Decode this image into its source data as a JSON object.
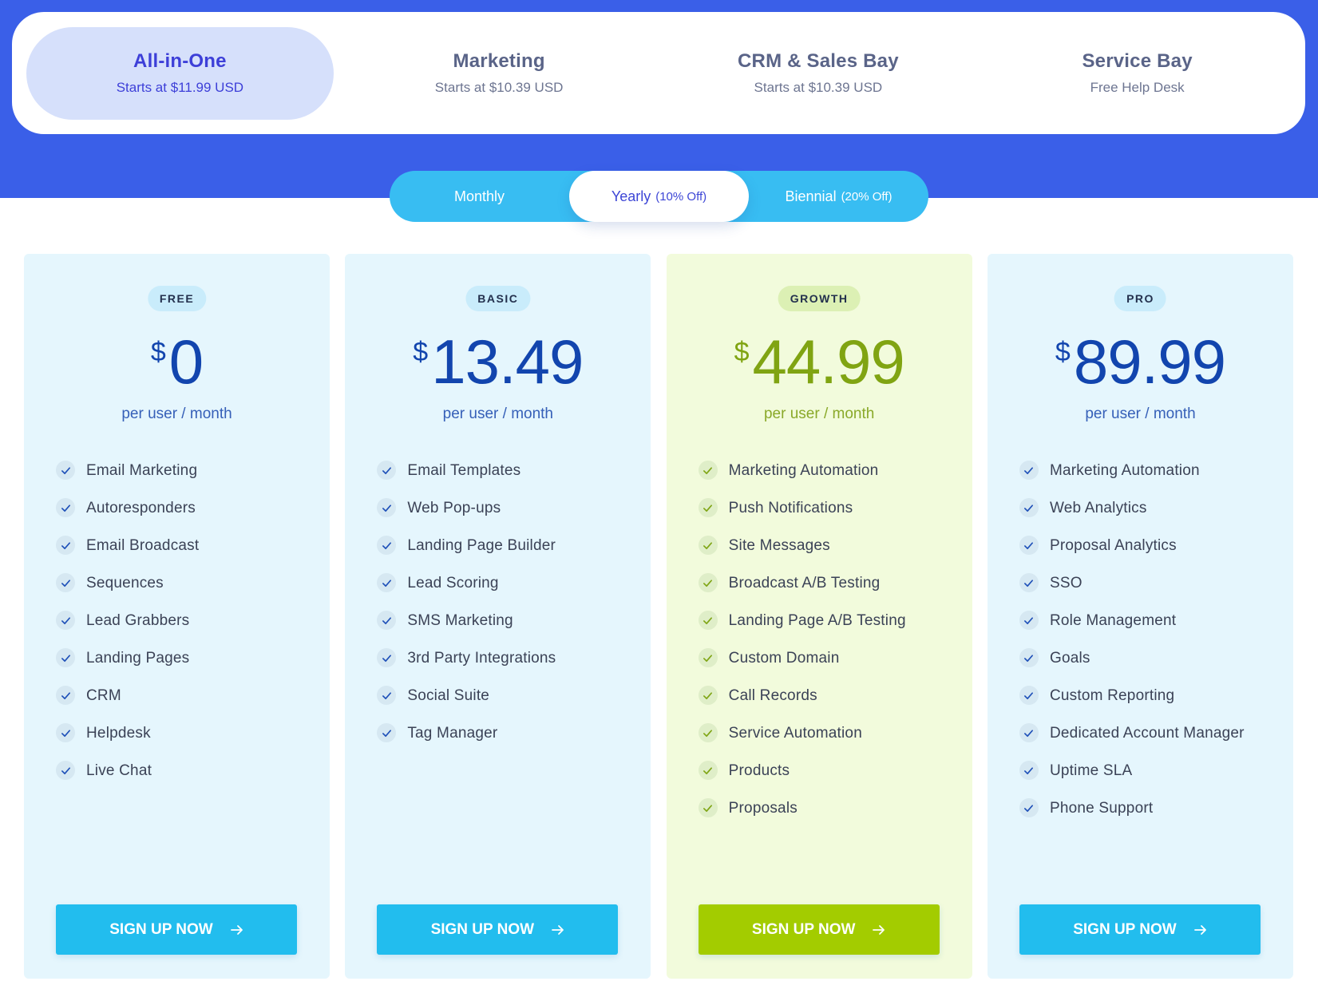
{
  "product_tabs": [
    {
      "name": "All-in-One",
      "sub": "Starts at $11.99 USD",
      "active": true
    },
    {
      "name": "Marketing",
      "sub": "Starts at $10.39 USD",
      "active": false
    },
    {
      "name": "CRM & Sales Bay",
      "sub": "Starts at $10.39 USD",
      "active": false
    },
    {
      "name": "Service Bay",
      "sub": "Free Help Desk",
      "active": false
    }
  ],
  "billing": {
    "monthly": {
      "label": "Monthly",
      "off": ""
    },
    "yearly": {
      "label": "Yearly",
      "off": "(10% Off)"
    },
    "biennial": {
      "label": "Biennial",
      "off": "(20% Off)"
    },
    "selected": "yearly"
  },
  "colors": {
    "hero": "#3a5fe8",
    "accent_blue": "#22bdee",
    "accent_green": "#a3cc00",
    "price_blue": "#1245ae"
  },
  "plans": [
    {
      "badge": "FREE",
      "currency": "$",
      "price": "0",
      "per": "per user / month",
      "features": [
        "Email Marketing",
        "Autoresponders",
        "Email Broadcast",
        "Sequences",
        "Lead Grabbers",
        "Landing Pages",
        "CRM",
        "Helpdesk",
        "Live Chat"
      ],
      "cta": "SIGN UP NOW"
    },
    {
      "badge": "BASIC",
      "currency": "$",
      "price": "13.49",
      "per": "per user / month",
      "features": [
        "Email Templates",
        "Web Pop-ups",
        "Landing Page Builder",
        "Lead Scoring",
        "SMS Marketing",
        "3rd Party Integrations",
        "Social Suite",
        "Tag Manager"
      ],
      "cta": "SIGN UP NOW"
    },
    {
      "badge": "GROWTH",
      "currency": "$",
      "price": "44.99",
      "per": "per user / month",
      "features": [
        "Marketing Automation",
        "Push Notifications",
        "Site Messages",
        "Broadcast A/B Testing",
        "Landing Page A/B Testing",
        "Custom Domain",
        "Call Records",
        "Service Automation",
        "Products",
        "Proposals"
      ],
      "cta": "SIGN UP NOW"
    },
    {
      "badge": "PRO",
      "currency": "$",
      "price": "89.99",
      "per": "per user / month",
      "features": [
        "Marketing Automation",
        "Web Analytics",
        "Proposal Analytics",
        "SSO",
        "Role Management",
        "Goals",
        "Custom Reporting",
        "Dedicated Account Manager",
        "Uptime SLA",
        "Phone Support"
      ],
      "cta": "SIGN UP NOW"
    }
  ]
}
